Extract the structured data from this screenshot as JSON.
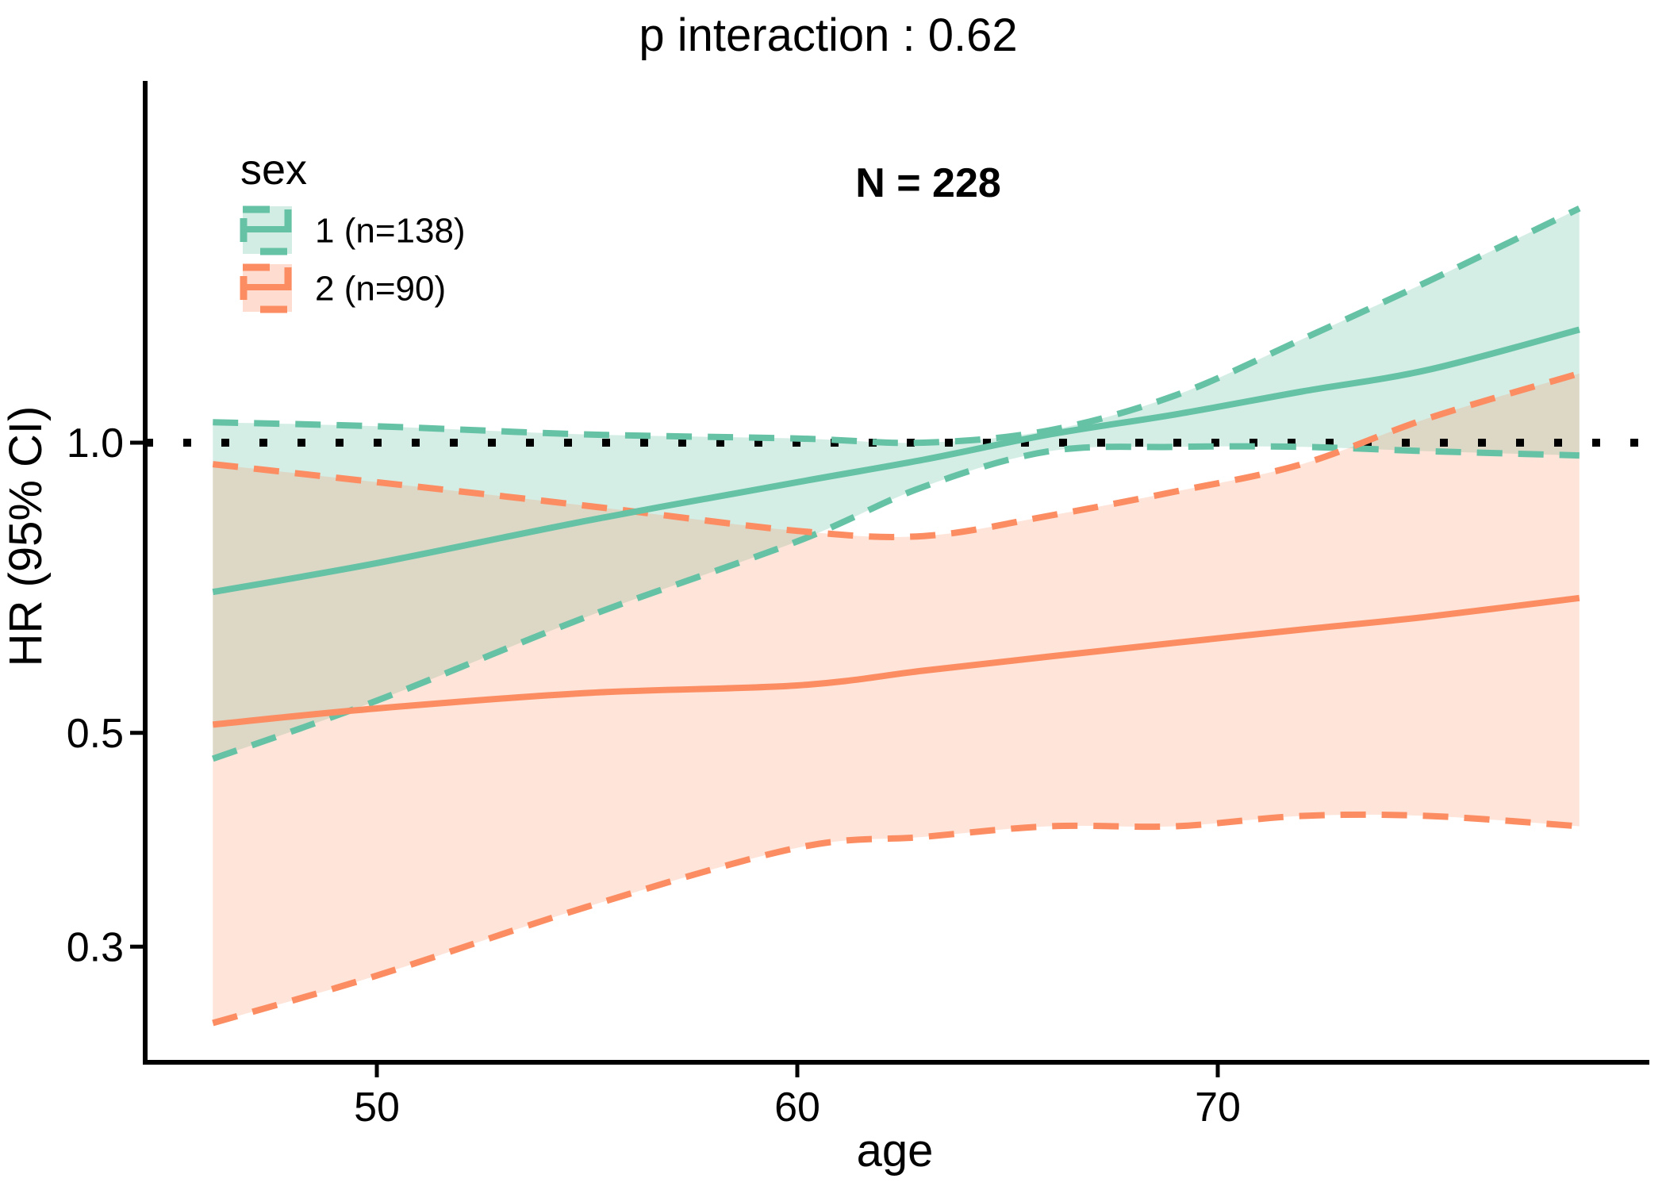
{
  "title": "p interaction : 0.62",
  "annotation": "N = 228",
  "legend": {
    "title": "sex",
    "items": [
      {
        "label": "1 (n=138)",
        "n": 138,
        "color": "#66C2A5"
      },
      {
        "label": "2 (n=90)",
        "n": 90,
        "color": "#FC8D62"
      }
    ]
  },
  "axes": {
    "x": {
      "label": "age",
      "ticks": [
        50,
        60,
        70
      ],
      "tick_labels": [
        "50",
        "60",
        "70"
      ]
    },
    "y": {
      "label": "HR (95% CI)",
      "ticks": [
        1.0,
        0.5,
        0.3
      ],
      "tick_labels": [
        "1.0",
        "0.5",
        "0.3"
      ]
    }
  },
  "chart_data": {
    "type": "line",
    "title": "p interaction : 0.62",
    "xlabel": "age",
    "ylabel": "HR (95% CI)",
    "yscale": "log10",
    "xlim": [
      44.5,
      80.4
    ],
    "ylim": [
      0.23,
      2.36
    ],
    "grid": false,
    "legend_position": "top-left-inside",
    "reference_line": 1.0,
    "total_n": 228,
    "x_age": [
      46.1,
      50,
      55,
      60,
      63,
      66,
      69,
      72,
      75,
      78.6
    ],
    "series": [
      {
        "name": "1 (n=138)",
        "color": "#66C2A5",
        "fill_alpha": 0.28,
        "hr": [
          0.7,
          0.75,
          0.83,
          0.91,
          0.96,
          1.02,
          1.07,
          1.13,
          1.19,
          1.31
        ],
        "upper": [
          1.05,
          1.04,
          1.02,
          1.01,
          1.0,
          1.03,
          1.12,
          1.28,
          1.47,
          1.75
        ],
        "lower": [
          0.47,
          0.54,
          0.66,
          0.79,
          0.9,
          0.98,
          0.99,
          0.99,
          0.98,
          0.97
        ]
      },
      {
        "name": "2 (n=90)",
        "color": "#FC8D62",
        "fill_alpha": 0.24,
        "hr": [
          0.51,
          0.53,
          0.55,
          0.56,
          0.58,
          0.6,
          0.62,
          0.64,
          0.66,
          0.69
        ],
        "upper": [
          0.95,
          0.91,
          0.86,
          0.81,
          0.8,
          0.84,
          0.89,
          0.95,
          1.06,
          1.18
        ],
        "lower": [
          0.25,
          0.28,
          0.33,
          0.38,
          0.39,
          0.4,
          0.4,
          0.41,
          0.41,
          0.4
        ]
      }
    ]
  }
}
